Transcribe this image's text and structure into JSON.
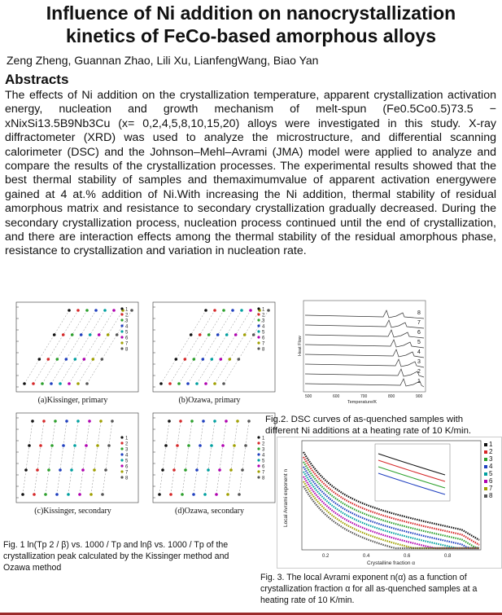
{
  "title_line1": "Influence of Ni addition on nanocrystallization",
  "title_line2": "kinetics of FeCo-based amorphous alloys",
  "authors": "Zeng Zheng,  Guannan Zhao, Lili Xu, LianfengWang, Biao Yan",
  "abstract_heading": "Abstracts",
  "abstract_text": "The effects of Ni addition on the crystallization temperature, apparent crystallization activation energy, nucleation and growth mechanism of melt-spun (Fe0.5Co0.5)73.5 − xNixSi13.5B9Nb3Cu (x= 0,2,4,5,8,10,15,20) alloys were investigated in this study. X-ray diffractometer (XRD) was used to analyze the microstructure, and differential scanning calorimeter (DSC) and the Johnson–Mehl–Avrami (JMA) model were applied to analyze and compare the results of the crystallization processes. The experimental results showed that the best thermal stability of samples and themaximumvalue of apparent activation energywere gained at 4 at.% addition of Ni.With increasing the Ni addition, thermal stability of residual amorphous matrix and resistance to secondary crystallization gradually decreased. During the secondary crystallization process, nucleation process continued until the end of crystallization, and there are interaction effects among the thermal stability of the residual amorphous phase, resistance to crystallization  and variation in nucleation rate.",
  "fig1": {
    "panel_a": "(a)Kissinger, primary",
    "panel_b": "(b)Ozawa, primary",
    "panel_c": "(c)Kissinger, secondary",
    "panel_d": "(d)Ozawa, secondary",
    "legend": [
      "1",
      "2",
      "3",
      "4",
      "5",
      "6",
      "7",
      "8"
    ],
    "caption": "Fig. 1 ln(Tp 2 / β) vs. 1000 / Tp and lnβ vs. 1000 / Tp of the crystallization peak calculated by the Kissinger method and Ozawa method"
  },
  "fig2": {
    "curve_labels": [
      "8",
      "7",
      "6",
      "5",
      "4",
      "3",
      "2",
      "1"
    ],
    "ylabel": "Heat Flow",
    "xlabel": "Temperature/K",
    "xticks": [
      "500",
      "600",
      "700",
      "800",
      "900"
    ],
    "caption": "Fig.2. DSC curves of  as-quenched samples with different  Ni additions at a heating rate of 10 K/min."
  },
  "fig3": {
    "ylabel": "Local Avrami exponent n",
    "xlabel": "Crystalline fraction α",
    "xticks": [
      "0.2",
      "0.4",
      "0.6",
      "0.8"
    ],
    "legend": [
      "1",
      "2",
      "3",
      "4",
      "5",
      "6",
      "7",
      "8"
    ],
    "caption": "Fig. 3. The local Avrami exponent n(α) as a function of crystallization fraction  α for all as-quenched samples at a heating rate of 10 K/min."
  },
  "colors": {
    "series": [
      "#111111",
      "#d62728",
      "#2ca02c",
      "#1f3fbf",
      "#00a0a0",
      "#b000b0",
      "#a0a000",
      "#555555"
    ],
    "rule": "#9b2a2a"
  }
}
